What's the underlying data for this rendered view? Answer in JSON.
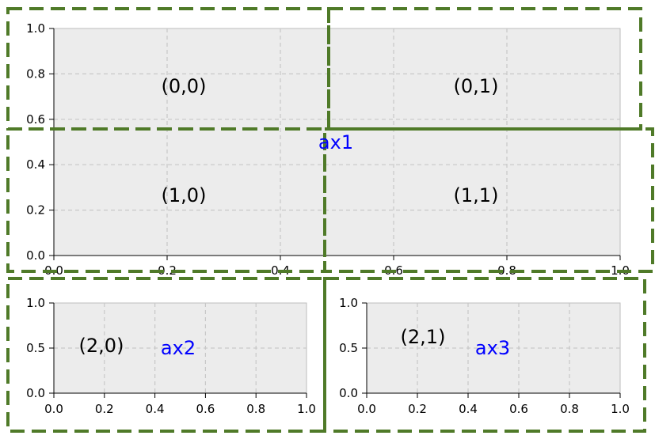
{
  "accent_color": "#0000ff",
  "grid_border_color": "#4f7a28",
  "plot_background": "#ececec",
  "axes": [
    {
      "id": "ax1",
      "label": "ax1",
      "x_ticks": [
        "0.0",
        "0.2",
        "0.4",
        "0.6",
        "0.8",
        "1.0"
      ],
      "y_ticks": [
        "0.0",
        "0.2",
        "0.4",
        "0.6",
        "0.8",
        "1.0"
      ],
      "cells": [
        "(0,0)",
        "(0,1)",
        "(1,0)",
        "(1,1)"
      ]
    },
    {
      "id": "ax2",
      "label": "ax2",
      "x_ticks": [
        "0.0",
        "0.2",
        "0.4",
        "0.6",
        "0.8",
        "1.0"
      ],
      "y_ticks": [
        "0.0",
        "0.5",
        "1.0"
      ],
      "cells": [
        "(2,0)"
      ]
    },
    {
      "id": "ax3",
      "label": "ax3",
      "x_ticks": [
        "0.0",
        "0.2",
        "0.4",
        "0.6",
        "0.8",
        "1.0"
      ],
      "y_ticks": [
        "0.0",
        "0.5",
        "1.0"
      ],
      "cells": [
        "(2,1)"
      ]
    }
  ]
}
